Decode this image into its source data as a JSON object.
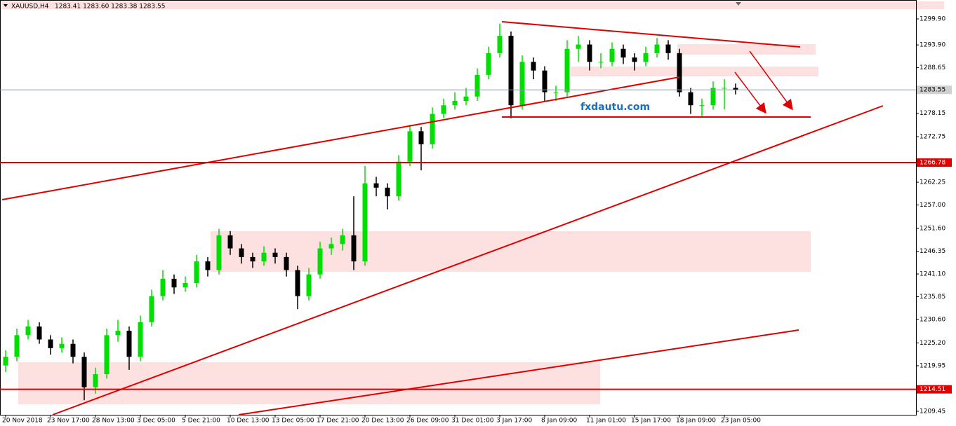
{
  "chart_data": {
    "type": "candlestick",
    "title": "XAUUSD,H4",
    "quote": "1283.41 1283.60 1283.38 1283.55",
    "watermark": "fxdautu.com",
    "up_color": "#00e000",
    "down_color": "#000000",
    "categories": [
      "20 Nov 2018",
      null,
      null,
      null,
      "23 Nov 17:00",
      null,
      null,
      null,
      "28 Nov 13:00",
      null,
      null,
      null,
      "3 Dec 05:00",
      null,
      null,
      null,
      "5 Dec 21:00",
      null,
      null,
      null,
      "10 Dec 13:00",
      null,
      null,
      null,
      "13 Dec 05:00",
      null,
      null,
      null,
      "17 Dec 21:00",
      null,
      null,
      null,
      "20 Dec 13:00",
      null,
      null,
      null,
      "26 Dec 09:00",
      null,
      null,
      null,
      "31 Dec 01:00",
      null,
      null,
      null,
      "3 Jan 17:00",
      null,
      null,
      null,
      "8 Jan 09:00",
      null,
      null,
      null,
      "11 Jan 01:00",
      null,
      null,
      null,
      "15 Jan 17:00",
      null,
      null,
      null,
      "18 Jan 09:00",
      null,
      null,
      null,
      "23 Jan 05:00",
      null
    ],
    "open": [
      1220,
      1222,
      1227,
      1229,
      1226,
      1224,
      1225,
      1222,
      1215,
      1218,
      1227,
      1228,
      1222,
      1230,
      1236,
      1240,
      1238,
      1239,
      1244,
      1242,
      1250,
      1247,
      1245,
      1244,
      1246,
      1245,
      1242,
      1236,
      1241,
      1247,
      1248,
      1250,
      1244,
      1262,
      1261,
      1259,
      1267,
      1274,
      1271,
      1278,
      1280,
      1281,
      1282,
      1287,
      1292,
      1296,
      1280,
      1290,
      1288,
      1283,
      1283,
      1293,
      1294,
      1290,
      1290,
      1293,
      1291,
      1290,
      1292,
      1294,
      1292,
      1283,
      1280,
      1280,
      1284,
      1284
    ],
    "high": [
      1223.5,
      1228.5,
      1230.5,
      1230,
      1227,
      1226.5,
      1226,
      1223,
      1219.5,
      1228.5,
      1230.5,
      1229,
      1231.5,
      1237.5,
      1242,
      1241,
      1240.5,
      1245.5,
      1245,
      1251.5,
      1251,
      1248,
      1246,
      1247.5,
      1247,
      1246,
      1243,
      1242.5,
      1248.5,
      1249.5,
      1251.5,
      1259,
      1266,
      1263.5,
      1262,
      1268.5,
      1275.5,
      1275,
      1279.5,
      1281.5,
      1283,
      1284,
      1288.5,
      1293.5,
      1298.8,
      1297,
      1291.5,
      1291,
      1289,
      1284.5,
      1295,
      1296,
      1295,
      1292,
      1294.5,
      1294,
      1292,
      1293.5,
      1295.5,
      1295,
      1293,
      1284,
      1281.5,
      1285.5,
      1286,
      1285
    ],
    "low": [
      1218.5,
      1221,
      1226,
      1225,
      1222.5,
      1223,
      1220.5,
      1212,
      1213.5,
      1217,
      1225.5,
      1219,
      1221,
      1229,
      1235,
      1236.5,
      1237,
      1238,
      1240.5,
      1241,
      1245.5,
      1243.5,
      1242.5,
      1243,
      1243.5,
      1240.5,
      1233,
      1235,
      1240,
      1245.5,
      1246.5,
      1242,
      1243,
      1259,
      1256,
      1258,
      1266,
      1265,
      1270,
      1277,
      1279,
      1280,
      1281,
      1286,
      1291,
      1277,
      1279,
      1286,
      1281,
      1281,
      1282,
      1290,
      1288,
      1288.5,
      1289,
      1289.5,
      1288,
      1289,
      1291,
      1290.5,
      1282,
      1278,
      1277.5,
      1279,
      1279,
      1282.5
    ],
    "close": [
      1222,
      1227,
      1229,
      1226,
      1224,
      1225,
      1222,
      1215,
      1218,
      1227,
      1228,
      1222,
      1230,
      1236,
      1240,
      1238,
      1239,
      1244,
      1242,
      1250,
      1247,
      1245,
      1244,
      1246,
      1245,
      1242,
      1236,
      1241,
      1247,
      1248,
      1250,
      1244,
      1262,
      1261,
      1259,
      1267,
      1274,
      1271,
      1278,
      1280,
      1281,
      1282,
      1287,
      1292,
      1296,
      1280,
      1290,
      1288,
      1283,
      1283,
      1293,
      1294,
      1290,
      1290,
      1293,
      1291,
      1290,
      1292,
      1294,
      1292,
      1283,
      1280,
      1280,
      1284,
      1284,
      1283.55
    ],
    "current_price": 1283.55,
    "levels": [
      1266.78,
      1214.51
    ],
    "level_color": "#e00000",
    "ylim": [
      1208.64,
      1304.26
    ],
    "yticks": [
      {
        "value": 1299.9,
        "label": "1299.90"
      },
      {
        "value": 1293.9,
        "label": "1293.90"
      },
      {
        "value": 1288.65,
        "label": "1288.65"
      },
      {
        "value": 1278.15,
        "label": "1278.15"
      },
      {
        "value": 1272.75,
        "label": "1272.75"
      },
      {
        "value": 1262.25,
        "label": "1262.25"
      },
      {
        "value": 1257,
        "label": "1257.00"
      },
      {
        "value": 1251.6,
        "label": "1251.60"
      },
      {
        "value": 1246.35,
        "label": "1246.35"
      },
      {
        "value": 1241.1,
        "label": "1241.10"
      },
      {
        "value": 1235.85,
        "label": "1235.85"
      },
      {
        "value": 1230.6,
        "label": "1230.60"
      },
      {
        "value": 1225.2,
        "label": "1225.20"
      },
      {
        "value": 1219.95,
        "label": "1219.95"
      },
      {
        "value": 1209.45,
        "label": "1209.45"
      }
    ]
  }
}
